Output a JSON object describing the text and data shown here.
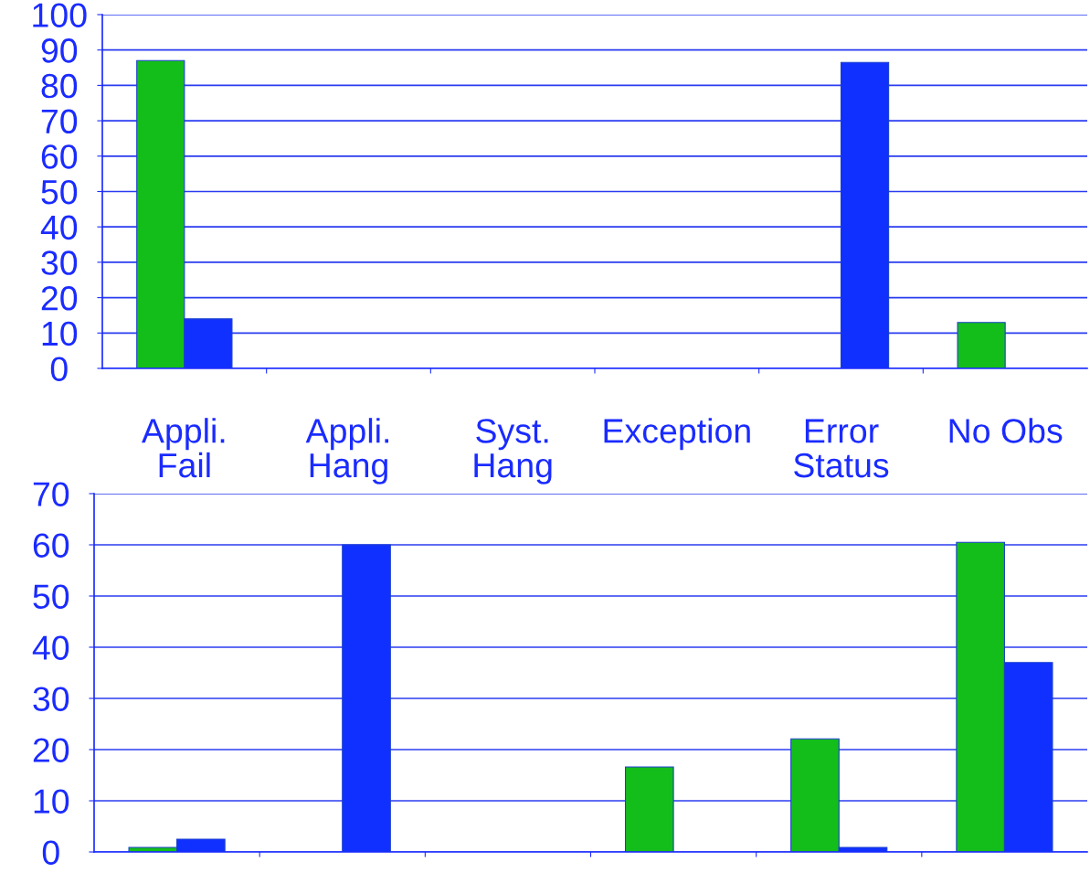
{
  "chart_data": [
    {
      "type": "bar",
      "categories": [
        "Appli.\nFail",
        "Appli.\nHang",
        "Syst.\nHang",
        "Exception",
        "Error\nStatus",
        "No Obs"
      ],
      "series": [
        {
          "color": "#14be1a",
          "values": [
            87,
            null,
            null,
            null,
            null,
            13
          ]
        },
        {
          "color": "#1030ff",
          "values": [
            14,
            null,
            null,
            null,
            86.5,
            null
          ]
        }
      ],
      "ylim": [
        0,
        100
      ],
      "yticks": [
        0,
        10,
        20,
        30,
        40,
        50,
        60,
        70,
        80,
        90,
        100
      ],
      "grid": "y",
      "legend": false
    },
    {
      "type": "bar",
      "categories": [
        null,
        null,
        null,
        null,
        null,
        null
      ],
      "series": [
        {
          "color": "#14be1a",
          "values": [
            0.9,
            null,
            null,
            16.6,
            22.1,
            60.5
          ]
        },
        {
          "color": "#1030ff",
          "values": [
            2.5,
            60,
            null,
            null,
            0.9,
            37
          ]
        }
      ],
      "ylim": [
        0,
        70
      ],
      "yticks": [
        0,
        10,
        20,
        30,
        40,
        50,
        60,
        70
      ],
      "grid": "y",
      "legend": false,
      "tick_labels": "y"
    }
  ]
}
